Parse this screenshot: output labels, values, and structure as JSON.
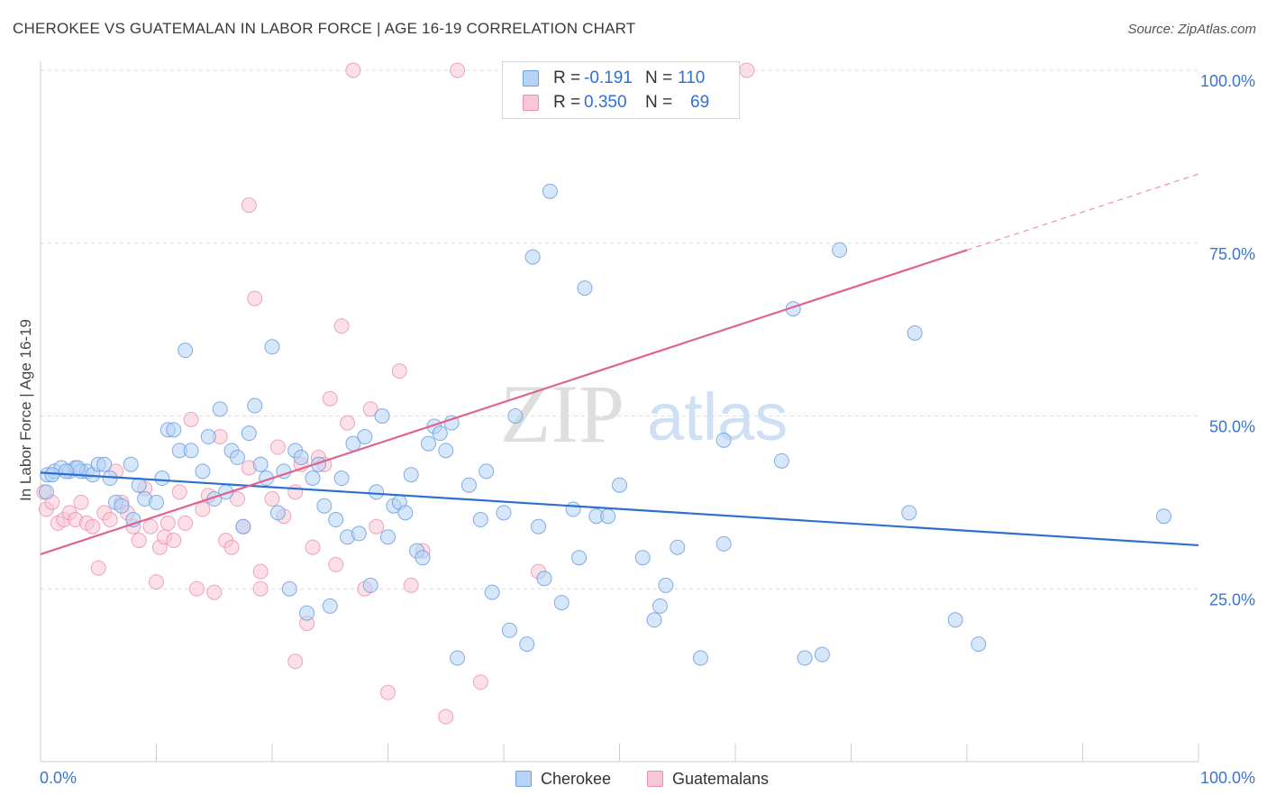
{
  "header": {
    "title": "CHEROKEE VS GUATEMALAN IN LABOR FORCE | AGE 16-19 CORRELATION CHART",
    "source": "Source: ZipAtlas.com"
  },
  "watermark": {
    "zip": "ZIP",
    "atlas": "atlas"
  },
  "legend_top": {
    "rows": [
      {
        "r_label": "R =",
        "r_value": "-0.191",
        "n_label": "N =",
        "n_value": "110"
      },
      {
        "r_label": "R =",
        "r_value": "0.350",
        "n_label": "N =",
        "n_value": "69"
      }
    ]
  },
  "legend_bottom": {
    "items": [
      "Cherokee",
      "Guatemalans"
    ]
  },
  "colors": {
    "cherokee_fill": "#b7d3f5",
    "cherokee_stroke": "#6f9fe0",
    "cherokee_line": "#2e6fd0",
    "guatemalan_fill": "#f8c6d6",
    "guatemalan_stroke": "#ec8fae",
    "guatemalan_line": "#e0638f",
    "tick_label": "#3b74cc",
    "grid": "#dddddd"
  },
  "chart_data": {
    "type": "scatter",
    "title": "CHEROKEE VS GUATEMALAN IN LABOR FORCE | AGE 16-19 CORRELATION CHART",
    "xlabel": "",
    "ylabel": "In Labor Force | Age 16-19",
    "xlim": [
      0,
      100
    ],
    "ylim": [
      0,
      100
    ],
    "x_tick_labels": [
      "0.0%",
      "100.0%"
    ],
    "y_tick_labels": [
      "25.0%",
      "50.0%",
      "75.0%",
      "100.0%"
    ],
    "y_ticks": [
      25,
      50,
      75,
      100
    ],
    "grid": "horizontal dashed",
    "legend_position": "top-center",
    "series": [
      {
        "name": "Cherokee",
        "r": -0.191,
        "n": 110,
        "trend": {
          "x": [
            0,
            100
          ],
          "y": [
            41.8,
            31.3
          ]
        },
        "points": [
          [
            0.5,
            39
          ],
          [
            0.6,
            41.5
          ],
          [
            1.2,
            42
          ],
          [
            1.8,
            42.5
          ],
          [
            2.5,
            42
          ],
          [
            3,
            42.5
          ],
          [
            3.5,
            42
          ],
          [
            4,
            42
          ],
          [
            4.5,
            41.5
          ],
          [
            5,
            43
          ],
          [
            5.5,
            43
          ],
          [
            6,
            41
          ],
          [
            6.5,
            37.5
          ],
          [
            7,
            37
          ],
          [
            8,
            35
          ],
          [
            7.8,
            43
          ],
          [
            8.5,
            40
          ],
          [
            9,
            38
          ],
          [
            10,
            37.5
          ],
          [
            10.5,
            41
          ],
          [
            11,
            48
          ],
          [
            11.5,
            48
          ],
          [
            12,
            45
          ],
          [
            12.5,
            59.5
          ],
          [
            13,
            45
          ],
          [
            14,
            42
          ],
          [
            14.5,
            47
          ],
          [
            15,
            38
          ],
          [
            15.5,
            51
          ],
          [
            16,
            39
          ],
          [
            16.5,
            45
          ],
          [
            17,
            44
          ],
          [
            17.5,
            34
          ],
          [
            18,
            47.5
          ],
          [
            18.5,
            51.5
          ],
          [
            19,
            43
          ],
          [
            19.5,
            41
          ],
          [
            20,
            60
          ],
          [
            20.5,
            36
          ],
          [
            21,
            42
          ],
          [
            21.5,
            25
          ],
          [
            22,
            45
          ],
          [
            22.5,
            44
          ],
          [
            23,
            21.5
          ],
          [
            23.5,
            41
          ],
          [
            24,
            43
          ],
          [
            24.5,
            37
          ],
          [
            25,
            22.5
          ],
          [
            25.5,
            35
          ],
          [
            26,
            41
          ],
          [
            26.5,
            32.5
          ],
          [
            27,
            46
          ],
          [
            27.5,
            33
          ],
          [
            28,
            47
          ],
          [
            28.5,
            25.5
          ],
          [
            29,
            39
          ],
          [
            29.5,
            50
          ],
          [
            30,
            32.5
          ],
          [
            30.5,
            37
          ],
          [
            31,
            37.5
          ],
          [
            31.5,
            36
          ],
          [
            32,
            41.5
          ],
          [
            32.5,
            30.5
          ],
          [
            33,
            29.5
          ],
          [
            33.5,
            46
          ],
          [
            34,
            48.5
          ],
          [
            34.5,
            47.5
          ],
          [
            35,
            45
          ],
          [
            35.5,
            49
          ],
          [
            36,
            15
          ],
          [
            37,
            40
          ],
          [
            38,
            35
          ],
          [
            38.5,
            42
          ],
          [
            39,
            24.5
          ],
          [
            40,
            36
          ],
          [
            40.5,
            19
          ],
          [
            41,
            50
          ],
          [
            42,
            17
          ],
          [
            42.5,
            73
          ],
          [
            43,
            34
          ],
          [
            43.5,
            26.5
          ],
          [
            44,
            82.5
          ],
          [
            45,
            23
          ],
          [
            46,
            36.5
          ],
          [
            46.5,
            29.5
          ],
          [
            47,
            68.5
          ],
          [
            48,
            35.5
          ],
          [
            49,
            35.5
          ],
          [
            50,
            40
          ],
          [
            52,
            29.5
          ],
          [
            53,
            20.5
          ],
          [
            53.5,
            22.5
          ],
          [
            54,
            25.5
          ],
          [
            55,
            31
          ],
          [
            57,
            15
          ],
          [
            59,
            31.5
          ],
          [
            59,
            46.5
          ],
          [
            64,
            43.5
          ],
          [
            65,
            65.5
          ],
          [
            66,
            15
          ],
          [
            67.5,
            15.5
          ],
          [
            69,
            74
          ],
          [
            75,
            36
          ],
          [
            75.5,
            62
          ],
          [
            79,
            20.5
          ],
          [
            81,
            17
          ],
          [
            97,
            35.5
          ],
          [
            1,
            41.5
          ],
          [
            3.2,
            42.5
          ],
          [
            2.2,
            42
          ]
        ]
      },
      {
        "name": "Guatemalans",
        "r": 0.35,
        "n": 69,
        "trend": {
          "x": [
            0,
            80
          ],
          "y": [
            30,
            74
          ]
        },
        "trend_dashed": {
          "x": [
            80,
            100
          ],
          "y": [
            74,
            85
          ]
        },
        "points": [
          [
            0.3,
            39
          ],
          [
            0.5,
            36.5
          ],
          [
            1,
            37.5
          ],
          [
            1.5,
            34.5
          ],
          [
            2,
            35
          ],
          [
            2.5,
            36
          ],
          [
            3,
            35
          ],
          [
            3.5,
            37.5
          ],
          [
            4,
            34.5
          ],
          [
            4.5,
            34
          ],
          [
            5,
            28
          ],
          [
            5.5,
            36
          ],
          [
            6,
            35
          ],
          [
            6.5,
            42
          ],
          [
            7,
            37.5
          ],
          [
            7.5,
            36
          ],
          [
            8,
            34
          ],
          [
            8.5,
            32
          ],
          [
            9,
            39.5
          ],
          [
            9.5,
            34
          ],
          [
            10,
            26
          ],
          [
            10.3,
            31
          ],
          [
            10.7,
            32.5
          ],
          [
            11,
            34.5
          ],
          [
            11.5,
            32
          ],
          [
            12,
            39
          ],
          [
            12.5,
            34.5
          ],
          [
            13,
            49.5
          ],
          [
            13.5,
            25
          ],
          [
            14,
            36.5
          ],
          [
            14.5,
            38.5
          ],
          [
            15,
            24.5
          ],
          [
            15.5,
            47
          ],
          [
            16,
            32
          ],
          [
            16.5,
            31
          ],
          [
            17,
            38
          ],
          [
            17.5,
            34
          ],
          [
            18,
            42.5
          ],
          [
            18,
            80.5
          ],
          [
            18.5,
            67
          ],
          [
            19,
            25
          ],
          [
            19,
            27.5
          ],
          [
            20,
            38
          ],
          [
            20.5,
            45.5
          ],
          [
            21,
            35.5
          ],
          [
            22,
            39
          ],
          [
            22.5,
            43
          ],
          [
            23,
            20
          ],
          [
            23.5,
            31
          ],
          [
            24,
            44
          ],
          [
            24.5,
            43
          ],
          [
            25,
            52.5
          ],
          [
            25.5,
            28.5
          ],
          [
            26,
            63
          ],
          [
            26.5,
            49
          ],
          [
            27,
            100
          ],
          [
            28,
            25
          ],
          [
            28.5,
            51
          ],
          [
            29,
            34
          ],
          [
            30,
            10
          ],
          [
            31,
            56.5
          ],
          [
            32,
            25.5
          ],
          [
            33,
            30.5
          ],
          [
            35,
            6.5
          ],
          [
            36,
            100
          ],
          [
            38,
            11.5
          ],
          [
            43,
            27.5
          ],
          [
            61,
            100
          ],
          [
            22,
            14.5
          ]
        ]
      }
    ]
  }
}
